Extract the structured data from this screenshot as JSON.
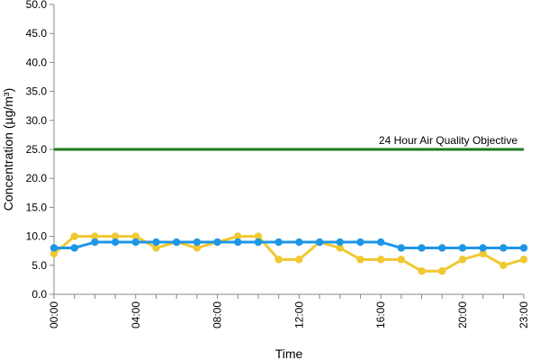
{
  "chart_data": {
    "type": "line",
    "xlabel": "Time",
    "ylabel": "Concentration (µg/m³)",
    "x": [
      "00:00",
      "01:00",
      "02:00",
      "03:00",
      "04:00",
      "05:00",
      "06:00",
      "07:00",
      "08:00",
      "09:00",
      "10:00",
      "11:00",
      "12:00",
      "13:00",
      "14:00",
      "15:00",
      "16:00",
      "17:00",
      "18:00",
      "19:00",
      "20:00",
      "21:00",
      "22:00",
      "23:00"
    ],
    "x_tick_labels": [
      "00:00",
      "04:00",
      "08:00",
      "12:00",
      "16:00",
      "20:00",
      "23:00"
    ],
    "y_tick_labels": [
      "0.0",
      "5.0",
      "10.0",
      "15.0",
      "20.0",
      "25.0",
      "30.0",
      "35.0",
      "40.0",
      "45.0",
      "50.0"
    ],
    "ylim": [
      0,
      50
    ],
    "grid": false,
    "series": [
      {
        "color": "#f0c832",
        "marker": "circle",
        "values": [
          7,
          10,
          10,
          10,
          10,
          8,
          9,
          8,
          9,
          10,
          10,
          6,
          6,
          9,
          8,
          6,
          6,
          6,
          4,
          4,
          6,
          7,
          5,
          6
        ]
      },
      {
        "color": "#1e96e6",
        "marker": "circle",
        "values": [
          8,
          8,
          9,
          9,
          9,
          9,
          9,
          9,
          9,
          9,
          9,
          9,
          9,
          9,
          9,
          9,
          9,
          8,
          8,
          8,
          8,
          8,
          8,
          8
        ]
      }
    ],
    "reference_lines": [
      {
        "label": "24 Hour Air Quality Objective",
        "value": 25,
        "color": "#1f7a1f"
      }
    ]
  }
}
